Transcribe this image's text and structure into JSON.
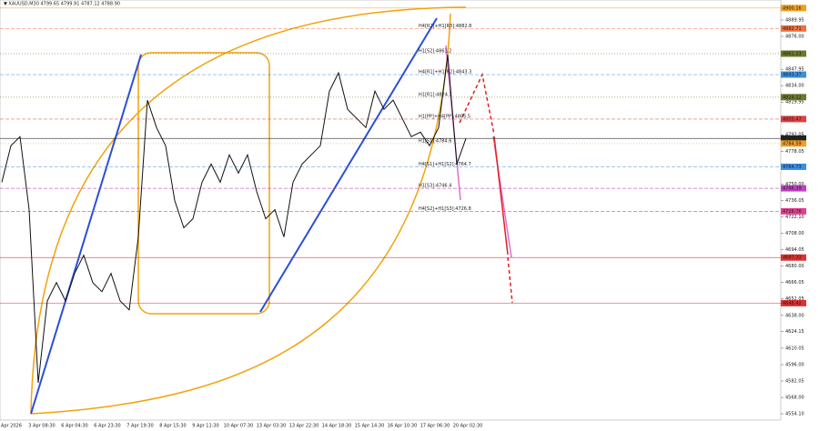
{
  "chart_data": {
    "type": "line",
    "title": "▼ XAUUSD,M30  4799.65 4799.91 4787.12 4788.90",
    "color": "#111111",
    "values": [
      4751.6,
      4782.7,
      4790.4,
      4728.2,
      4580.4,
      4650.4,
      4666.0,
      4650.4,
      4673.8,
      4689.3,
      4666.0,
      4658.2,
      4673.8,
      4650.4,
      4642.7,
      4704.9,
      4821.6,
      4798.2,
      4782.7,
      4736.0,
      4712.7,
      4720.4,
      4751.6,
      4767.1,
      4751.6,
      4774.9,
      4759.3,
      4774.9,
      4743.8,
      4720.4,
      4728.2,
      4704.9,
      4751.6,
      4767.1,
      4774.9,
      4782.7,
      4829.3,
      4844.9,
      4813.8,
      4806.0,
      4798.2,
      4829.3,
      4813.8,
      4821.6,
      4806.0,
      4790.4,
      4794.3,
      4782.7,
      4798.2,
      4860.4,
      4767.1,
      4788.9
    ],
    "ylim": [
      4548.7,
      4907.0
    ],
    "yticks": [
      4889.95,
      {
        "value": 4876.0,
        "label": "4876.00"
      },
      4862.05,
      4847.95,
      {
        "value": 4834.0,
        "label": "4834.00"
      },
      4819.95,
      {
        "value": 4806.0,
        "label": "4806.00"
      },
      4792.05,
      4778.05,
      {
        "value": 4764.0,
        "label": "4764.00"
      },
      {
        "value": 4750.0,
        "label": "4750.00"
      },
      4736.05,
      {
        "value": 4722.1,
        "label": "4722.10"
      },
      {
        "value": 4708.0,
        "label": "4708.00"
      },
      4694.05,
      {
        "value": 4680.0,
        "label": "4680.00"
      },
      4666.05,
      4652.05,
      {
        "value": 4638.0,
        "label": "4638.00"
      },
      4624.15,
      4610.05,
      {
        "value": 4596.0,
        "label": "4596.00"
      },
      4582.05,
      {
        "value": 4568.0,
        "label": "4568.00"
      },
      {
        "value": 4554.1,
        "label": "4554.10"
      }
    ],
    "xtick_labels": [
      "2 Apr 2026",
      "3 Apr 08:30",
      "6 Apr 04:30",
      "6 Apr 23:30",
      "7 Apr 19:30",
      "8 Apr 15:30",
      "9 Apr 11:30",
      "10 Apr 07:30",
      "13 Apr 03:30",
      "13 Apr 22:30",
      "14 Apr 18:30",
      "15 Apr 14:30",
      "16 Apr 10:30",
      "17 Apr 06:30",
      "20 Apr 02:30"
    ],
    "levels": [
      {
        "value": 4900.16,
        "color": "#f0a020",
        "style": "solid"
      },
      {
        "value": 4882.71,
        "color": "#f07040",
        "style": "dashed",
        "annotation": "H4[R2]+H1[R3]:4882.8"
      },
      {
        "value": 4861.23,
        "color": "#6b7a2a",
        "style": "dotted",
        "annotation": "H1[S2]:4861.2"
      },
      {
        "value": 4843.37,
        "color": "#3a8fe0",
        "style": "dashed",
        "annotation": "H4[R1]+H1[R2]:4843.3"
      },
      {
        "value": 4824.12,
        "color": "#6b7a2a",
        "style": "dotted",
        "annotation": "H1[R1]:4824.1"
      },
      {
        "value": 4805.47,
        "color": "#e04040",
        "style": "dashed",
        "annotation": "H1[PP]+H4[PP]:4805.5"
      },
      {
        "value": 4788.9,
        "label": "4788.90",
        "color": "#222222",
        "style": "solid"
      },
      {
        "value": 4784.59,
        "color": "#f0a020",
        "style": "dotted",
        "annotation": "H1[S1]:4784.6"
      },
      {
        "value": 4764.73,
        "color": "#3a8fe0",
        "style": "dashed",
        "annotation": "H4[S1]+H1[S2]:4764.7"
      },
      {
        "value": 4746.39,
        "color": "#c040c0",
        "style": "dashed",
        "annotation": "H1[S3]:4746.4"
      },
      {
        "value": 4726.76,
        "color": "#e04090",
        "style": "dashed",
        "annotation": "H4[S2]+H1[S3]:4726.8"
      },
      {
        "value": 4687.33,
        "color": "#e03030",
        "style": "solid"
      },
      {
        "value": 4648.42,
        "color": "#e03030",
        "style": "solid"
      }
    ]
  }
}
